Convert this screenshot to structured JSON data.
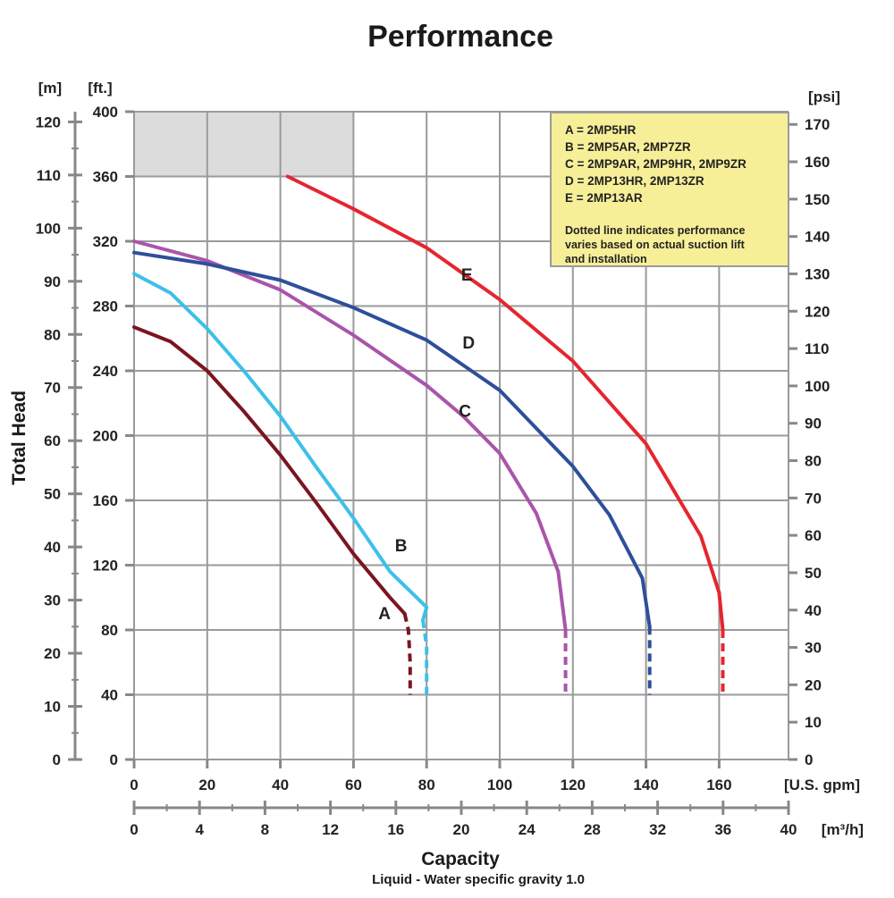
{
  "chart_data": {
    "type": "line",
    "title": "Performance",
    "ylabel": "Total Head",
    "xlabel": "Capacity",
    "subtitle": "Liquid - Water specific gravity 1.0",
    "units": {
      "y_left_m": "[m]",
      "y_left_ft": "[ft.]",
      "y_right_psi": "[psi]",
      "x_gpm": "[U.S. gpm]",
      "x_m3h": "[m³/h]"
    },
    "axes": {
      "x_gpm": {
        "range": [
          0,
          179
        ],
        "ticks": [
          0,
          20,
          40,
          60,
          80,
          100,
          120,
          140,
          160
        ]
      },
      "x_m3h": {
        "range": [
          0,
          40
        ],
        "ticks": [
          0,
          4,
          8,
          12,
          16,
          20,
          24,
          28,
          32,
          36,
          40
        ]
      },
      "y_ft": {
        "range": [
          0,
          400
        ],
        "ticks": [
          0,
          40,
          80,
          120,
          160,
          200,
          240,
          280,
          320,
          360,
          400
        ]
      },
      "y_m": {
        "range": [
          0,
          120
        ],
        "ticks": [
          0,
          10,
          20,
          30,
          40,
          50,
          60,
          70,
          80,
          90,
          100,
          110,
          120
        ]
      },
      "y_psi": {
        "range": [
          0,
          170
        ],
        "ticks": [
          0,
          10,
          20,
          30,
          40,
          50,
          60,
          70,
          80,
          90,
          100,
          110,
          120,
          130,
          140,
          150,
          160,
          170
        ]
      }
    },
    "grid": true,
    "legend_box": {
      "position": "top-right",
      "lines": [
        "A = 2MP5HR",
        "B = 2MP5AR, 2MP7ZR",
        "C = 2MP9AR, 2MP9HR, 2MP9ZR",
        "D = 2MP13HR, 2MP13ZR",
        "E = 2MP13AR"
      ],
      "note_lines": [
        "Dotted line indicates performance",
        "varies based on actual suction lift",
        "and installation"
      ]
    },
    "shaded_region": {
      "x": [
        0,
        60
      ],
      "y": [
        360,
        400
      ]
    },
    "series": [
      {
        "name": "A",
        "color": "#7a1520",
        "points": [
          [
            0,
            267
          ],
          [
            10,
            258
          ],
          [
            20,
            240
          ],
          [
            30,
            215
          ],
          [
            40,
            188
          ],
          [
            50,
            158
          ],
          [
            60,
            127
          ],
          [
            70,
            100
          ],
          [
            74,
            90
          ]
        ],
        "dashed_points": [
          [
            74,
            90
          ],
          [
            75,
            80
          ],
          [
            75.5,
            60
          ],
          [
            75.5,
            40
          ]
        ],
        "label_at": [
          68.5,
          90
        ]
      },
      {
        "name": "B",
        "color": "#3cc0ea",
        "points": [
          [
            0,
            300
          ],
          [
            10,
            288
          ],
          [
            20,
            266
          ],
          [
            30,
            240
          ],
          [
            40,
            212
          ],
          [
            50,
            180
          ],
          [
            60,
            149
          ],
          [
            70,
            116
          ],
          [
            80,
            94
          ],
          [
            79,
            86
          ]
        ],
        "dashed_points": [
          [
            79,
            86
          ],
          [
            80,
            70
          ],
          [
            80,
            40
          ]
        ],
        "label_at": [
          73,
          132
        ]
      },
      {
        "name": "C",
        "color": "#a955aa",
        "points": [
          [
            0,
            320
          ],
          [
            20,
            308
          ],
          [
            40,
            290
          ],
          [
            60,
            262
          ],
          [
            80,
            231
          ],
          [
            90,
            212
          ],
          [
            100,
            189
          ],
          [
            110,
            152
          ],
          [
            116,
            116
          ],
          [
            118,
            80
          ]
        ],
        "dashed_points": [
          [
            118,
            80
          ],
          [
            118,
            40
          ]
        ],
        "label_at": [
          90.5,
          215
        ]
      },
      {
        "name": "D",
        "color": "#2e4f9a",
        "points": [
          [
            0,
            313
          ],
          [
            20,
            306
          ],
          [
            40,
            296
          ],
          [
            60,
            279
          ],
          [
            80,
            259
          ],
          [
            100,
            228
          ],
          [
            120,
            181
          ],
          [
            130,
            151
          ],
          [
            139,
            112
          ],
          [
            141,
            82
          ]
        ],
        "dashed_points": [
          [
            141,
            82
          ],
          [
            141,
            40
          ]
        ],
        "label_at": [
          91.5,
          257
        ]
      },
      {
        "name": "E",
        "color": "#e5262f",
        "points": [
          [
            42,
            360
          ],
          [
            60,
            340
          ],
          [
            80,
            316
          ],
          [
            100,
            284
          ],
          [
            120,
            246
          ],
          [
            140,
            195
          ],
          [
            155,
            138
          ],
          [
            160,
            103
          ],
          [
            161,
            80
          ]
        ],
        "dashed_points": [
          [
            161,
            80
          ],
          [
            161,
            40
          ]
        ],
        "label_at": [
          91,
          299
        ]
      }
    ]
  }
}
